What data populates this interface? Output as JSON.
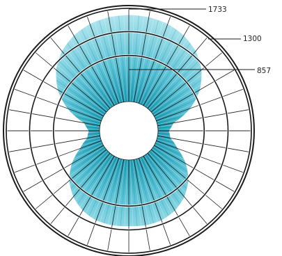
{
  "chart_data": {
    "type": "polar-area",
    "title": "",
    "ring_labels": [
      "1733",
      "1300",
      "857"
    ],
    "ring_values": [
      1733,
      1300,
      857
    ],
    "r_max": 1733,
    "angular_divisions": 36,
    "series": [
      {
        "profile": [
          {
            "angle": 0,
            "value": 1610
          },
          {
            "angle": 10,
            "value": 1600
          },
          {
            "angle": 20,
            "value": 1570
          },
          {
            "angle": 30,
            "value": 1500
          },
          {
            "angle": 40,
            "value": 1390
          },
          {
            "angle": 50,
            "value": 1220
          },
          {
            "angle": 60,
            "value": 980
          },
          {
            "angle": 70,
            "value": 670
          },
          {
            "angle": 80,
            "value": 300
          },
          {
            "angle": 90,
            "value": 200
          },
          {
            "angle": 100,
            "value": 240
          },
          {
            "angle": 110,
            "value": 420
          },
          {
            "angle": 120,
            "value": 680
          },
          {
            "angle": 130,
            "value": 900
          },
          {
            "angle": 140,
            "value": 1060
          },
          {
            "angle": 150,
            "value": 1170
          },
          {
            "angle": 160,
            "value": 1230
          },
          {
            "angle": 170,
            "value": 1240
          },
          {
            "angle": 180,
            "value": 1230
          }
        ]
      }
    ],
    "colors": {
      "fill_outer": "#9bdde9",
      "fill_inner": "#2aa7bd",
      "ring": "#1b1b1b",
      "spoke": "#1b1b1b"
    }
  }
}
